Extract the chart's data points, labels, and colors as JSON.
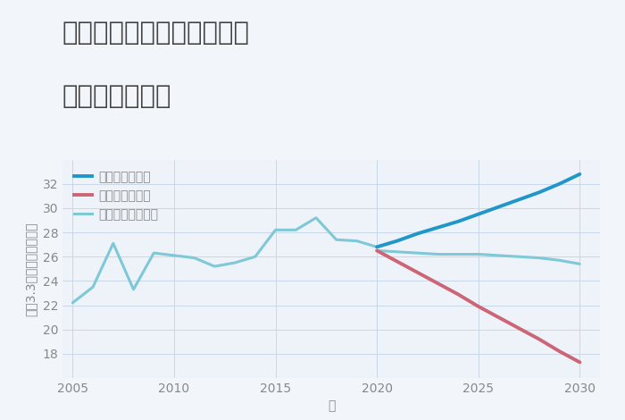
{
  "title_line1": "埼玉県川越市安比奈新田の",
  "title_line2": "土地の価格推移",
  "xlabel": "年",
  "ylabel": "平（3.3㎡）単価（万円）",
  "background_color": "#f2f6fb",
  "plot_background": "#eef3f9",
  "ylim": [
    16,
    34
  ],
  "xlim": [
    2004.5,
    2031
  ],
  "yticks": [
    18,
    20,
    22,
    24,
    26,
    28,
    30,
    32
  ],
  "xticks": [
    2005,
    2010,
    2015,
    2020,
    2025,
    2030
  ],
  "normal_historical": {
    "years": [
      2005,
      2006,
      2007,
      2008,
      2009,
      2010,
      2011,
      2012,
      2013,
      2014,
      2015,
      2016,
      2017,
      2018,
      2019,
      2020
    ],
    "values": [
      22.2,
      23.5,
      27.1,
      23.3,
      26.3,
      26.1,
      25.9,
      25.2,
      25.5,
      26.0,
      28.2,
      28.2,
      29.2,
      27.4,
      27.3,
      26.8
    ],
    "color": "#7ec8d8",
    "linewidth": 2.2,
    "label": "ノーマルシナリオ"
  },
  "good_scenario": {
    "years": [
      2020,
      2021,
      2022,
      2023,
      2024,
      2025,
      2026,
      2027,
      2028,
      2029,
      2030
    ],
    "values": [
      26.8,
      27.3,
      27.9,
      28.4,
      28.9,
      29.5,
      30.1,
      30.7,
      31.3,
      32.0,
      32.8
    ],
    "color": "#2196c8",
    "linewidth": 2.8,
    "label": "グッドシナリオ"
  },
  "bad_scenario": {
    "years": [
      2020,
      2021,
      2022,
      2023,
      2024,
      2025,
      2026,
      2027,
      2028,
      2029,
      2030
    ],
    "values": [
      26.5,
      25.6,
      24.7,
      23.8,
      22.9,
      21.9,
      21.0,
      20.1,
      19.2,
      18.2,
      17.3
    ],
    "color": "#cc6677",
    "linewidth": 2.8,
    "label": "バッドシナリオ"
  },
  "normal_future": {
    "years": [
      2020,
      2021,
      2022,
      2023,
      2024,
      2025,
      2026,
      2027,
      2028,
      2029,
      2030
    ],
    "values": [
      26.5,
      26.4,
      26.3,
      26.2,
      26.2,
      26.2,
      26.1,
      26.0,
      25.9,
      25.7,
      25.4
    ],
    "color": "#7ec8d8",
    "linewidth": 2.2,
    "label": null
  },
  "grid_color": "#c8d8e8",
  "title_fontsize": 21,
  "axis_label_fontsize": 10,
  "tick_fontsize": 10,
  "legend_fontsize": 10,
  "title_color": "#444444",
  "tick_color": "#888888"
}
